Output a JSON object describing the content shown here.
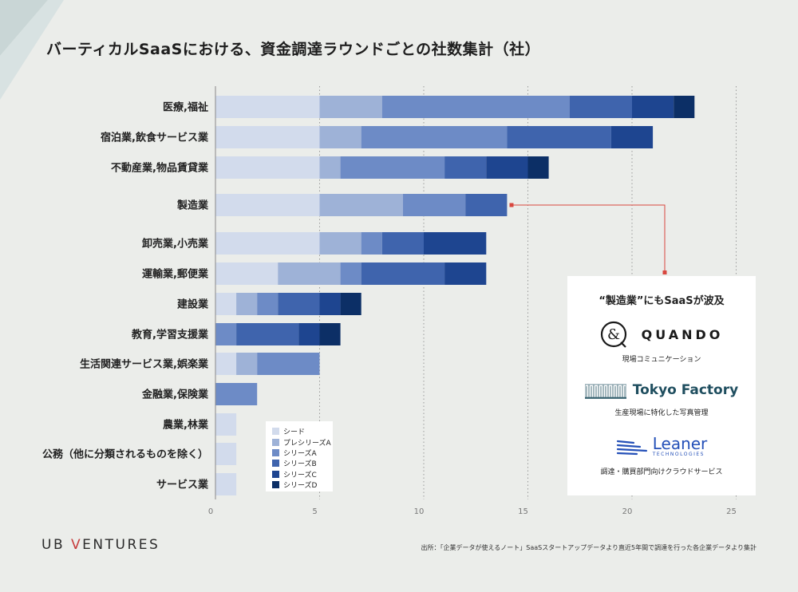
{
  "title": "バーティカルSaaSにおける、資金調達ラウンドごとの社数集計（社）",
  "colors": {
    "background": "#ebedea",
    "rounds": [
      "#d2dbec",
      "#9eb2d7",
      "#6d8bc6",
      "#3f64ad",
      "#1e4590",
      "#0c2f66"
    ],
    "callout_line": "#d8473f"
  },
  "chart_data": {
    "type": "bar",
    "orientation": "horizontal",
    "stacked": true,
    "title": "バーティカルSaaSにおける、資金調達ラウンドごとの社数集計（社）",
    "xlabel": "",
    "ylabel": "",
    "xlim": [
      0,
      25
    ],
    "xticks": [
      "0",
      "5",
      "10",
      "15",
      "20",
      "25"
    ],
    "grid": "vertical-dotted",
    "legend_position": "lower-center",
    "categories": [
      "医療,福祉",
      "宿泊業,飲食サービス業",
      "不動産業,物品賃貸業",
      "製造業",
      "卸売業,小売業",
      "運輸業,郵便業",
      "建設業",
      "教育,学習支援業",
      "生活関連サービス業,娯楽業",
      "金融業,保険業",
      "農業,林業",
      "公務（他に分類されるものを除く）",
      "サービス業"
    ],
    "series": [
      {
        "name": "シード",
        "values": [
          5,
          5,
          5,
          5,
          5,
          3,
          1,
          0,
          1,
          0,
          1,
          1,
          1
        ]
      },
      {
        "name": "プレシリーズA",
        "values": [
          3,
          2,
          1,
          4,
          2,
          3,
          1,
          0,
          1,
          0,
          0,
          0,
          0
        ]
      },
      {
        "name": "シリーズA",
        "values": [
          9,
          7,
          5,
          3,
          1,
          1,
          1,
          1,
          3,
          2,
          0,
          0,
          0
        ]
      },
      {
        "name": "シリーズB",
        "values": [
          3,
          5,
          2,
          2,
          2,
          4,
          2,
          3,
          0,
          0,
          0,
          0,
          0
        ]
      },
      {
        "name": "シリーズC",
        "values": [
          2,
          2,
          2,
          0,
          3,
          2,
          1,
          1,
          0,
          0,
          0,
          0,
          0
        ]
      },
      {
        "name": "シリーズD",
        "values": [
          1,
          0,
          1,
          0,
          0,
          0,
          1,
          1,
          0,
          0,
          0,
          0,
          0
        ]
      }
    ]
  },
  "callout": {
    "heading": "“製造業”にもSaaSが波及",
    "companies": [
      {
        "name": "QUANDO",
        "caption": "現場コミュニケーション",
        "icon": "ampersand-logo-icon"
      },
      {
        "name": "Tokyo Factory",
        "caption": "生産現場に特化した写真管理",
        "icon": "factory-building-logo-icon"
      },
      {
        "name": "Leaner",
        "sub": "TECHNOLOGIES",
        "caption": "調達・購買部門向けクラウドサービス",
        "icon": "speed-lines-logo-icon"
      }
    ]
  },
  "footer": {
    "brand_left": "UB ",
    "brand_v": "V",
    "brand_right": "ENTURES",
    "source": "出所：「企業データが使えるノート」SaaSスタートアップデータより直近5年間で調達を行った各企業データより集計"
  }
}
